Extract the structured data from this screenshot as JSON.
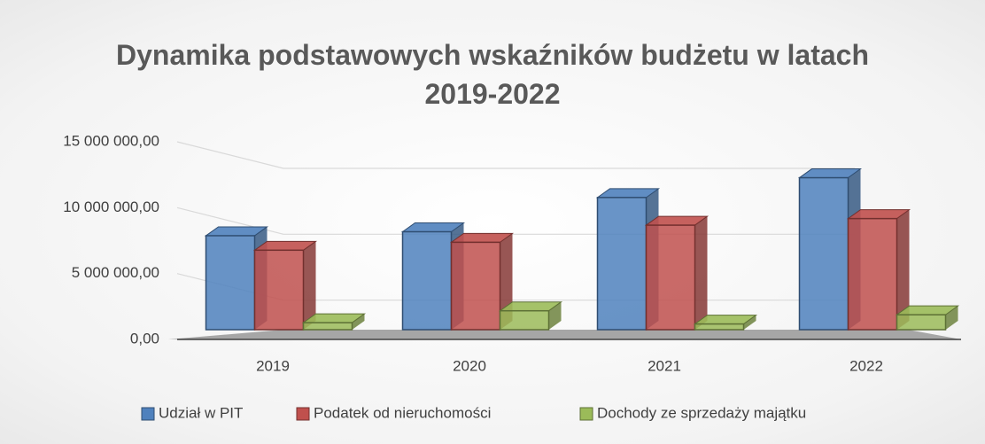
{
  "chart_data": {
    "type": "bar3d",
    "title": "Dynamika podstawowych wskaźników budżetu w latach 2019-2022",
    "categories": [
      "2019",
      "2020",
      "2021",
      "2022"
    ],
    "series": [
      {
        "name": "Udział w PIT",
        "color": "#4f81bd",
        "values": [
          7200000,
          7500000,
          10100000,
          11600000
        ]
      },
      {
        "name": "Podatek od nieruchomości",
        "color": "#c0504d",
        "values": [
          6100000,
          6700000,
          8000000,
          8500000
        ]
      },
      {
        "name": "Dochody ze sprzedaży majątku",
        "color": "#9bbb59",
        "values": [
          600000,
          1500000,
          500000,
          1200000
        ]
      }
    ],
    "ylim": [
      0,
      15000000
    ],
    "yticks": [
      {
        "value": 0,
        "label": "0,00"
      },
      {
        "value": 5000000,
        "label": "5 000 000,00"
      },
      {
        "value": 10000000,
        "label": "10 000 000,00"
      },
      {
        "value": 15000000,
        "label": "15 000 000,00"
      }
    ],
    "grid": true,
    "legend": "bottom"
  }
}
